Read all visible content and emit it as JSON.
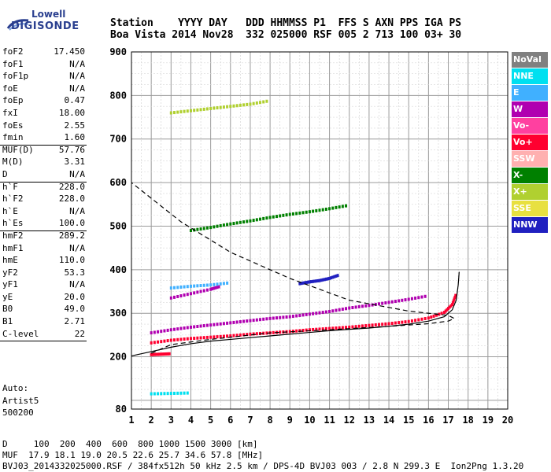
{
  "logo": {
    "line1": "Lowell",
    "line2": "DIGISONDE"
  },
  "header": {
    "labels": "Station    YYYY DAY   DDD HHMMSS P1  FFS S AXN PPS IGA PS",
    "values": "Boa Vista 2014 Nov28  332 025000 RSF 005 2 713 100 03+ 30"
  },
  "params": [
    {
      "k": "foF2",
      "v": "17.450"
    },
    {
      "k": "foF1",
      "v": "N/A"
    },
    {
      "k": "foF1p",
      "v": "N/A"
    },
    {
      "k": "foE",
      "v": "N/A"
    },
    {
      "k": "foEp",
      "v": "0.47"
    },
    {
      "k": "fxI",
      "v": "18.00"
    },
    {
      "k": "foEs",
      "v": "2.55"
    },
    {
      "k": "fmin",
      "v": "1.60"
    },
    {
      "k": "MUF(D)",
      "v": "57.76"
    },
    {
      "k": "M(D)",
      "v": "3.31"
    },
    {
      "k": "D",
      "v": "N/A"
    },
    {
      "k": "h`F",
      "v": "228.0"
    },
    {
      "k": "h`F2",
      "v": "228.0"
    },
    {
      "k": "h`E",
      "v": "N/A"
    },
    {
      "k": "h`Es",
      "v": "100.0"
    },
    {
      "k": "hmF2",
      "v": "289.2"
    },
    {
      "k": "hmF1",
      "v": "N/A"
    },
    {
      "k": "hmE",
      "v": "110.0"
    },
    {
      "k": "yF2",
      "v": "53.3"
    },
    {
      "k": "yF1",
      "v": "N/A"
    },
    {
      "k": "yE",
      "v": "20.0"
    },
    {
      "k": "B0",
      "v": "49.0"
    },
    {
      "k": "B1",
      "v": "2.71"
    },
    {
      "k": "C-level",
      "v": "22"
    }
  ],
  "auto": {
    "l1": "Auto:",
    "l2": "Artist5",
    "l3": "500200"
  },
  "legend": [
    {
      "label": "NoVal",
      "color": "#808080"
    },
    {
      "label": "NNE",
      "color": "#00e0f0"
    },
    {
      "label": "E",
      "color": "#40b0ff"
    },
    {
      "label": "W",
      "color": "#b000b0"
    },
    {
      "label": "Vo-",
      "color": "#ff40a0"
    },
    {
      "label": "Vo+",
      "color": "#ff0030"
    },
    {
      "label": "SSW",
      "color": "#ffb0b0"
    },
    {
      "label": "X-",
      "color": "#008000"
    },
    {
      "label": "X+",
      "color": "#b0d030"
    },
    {
      "label": "SSE",
      "color": "#e8e040"
    },
    {
      "label": "NNW",
      "color": "#2020c0"
    }
  ],
  "footer": {
    "line1": "D     100  200  400  600  800 1000 1500 3000 [km]",
    "line2": "MUF  17.9 18.1 19.0 20.5 22.6 25.7 34.6 57.8 [MHz]",
    "line3": "BVJ03_2014332025000.RSF / 384fx512h 50 kHz 2.5 km / DPS-4D BVJ03 003 / 2.8 N 299.3 E  Ion2Png 1.3.20"
  },
  "chart_data": {
    "type": "scatter",
    "title": "",
    "xlabel": "",
    "ylabel": "",
    "xlim": [
      1,
      20
    ],
    "ylim": [
      80,
      900
    ],
    "xticks": [
      1,
      2,
      3,
      4,
      5,
      6,
      7,
      8,
      9,
      10,
      11,
      12,
      13,
      14,
      15,
      16,
      17,
      18,
      19,
      20
    ],
    "yticks": [
      80,
      200,
      300,
      400,
      500,
      600,
      700,
      800,
      900
    ],
    "grid": true,
    "legend_position": "right",
    "virtual_height_profile": [
      [
        1.0,
        202
      ],
      [
        2.0,
        212
      ],
      [
        3.0,
        222
      ],
      [
        4.0,
        230
      ],
      [
        5.0,
        236
      ],
      [
        6.0,
        240
      ],
      [
        7.0,
        244
      ],
      [
        8.0,
        248
      ],
      [
        9.0,
        252
      ],
      [
        10.0,
        256
      ],
      [
        11.0,
        260
      ],
      [
        12.0,
        263
      ],
      [
        13.0,
        266
      ],
      [
        14.0,
        270
      ],
      [
        15.0,
        275
      ],
      [
        16.0,
        282
      ],
      [
        16.8,
        292
      ],
      [
        17.2,
        308
      ],
      [
        17.4,
        330
      ],
      [
        17.5,
        365
      ],
      [
        17.55,
        395
      ]
    ],
    "true_height_profile": [
      [
        2.0,
        208
      ],
      [
        3.0,
        228
      ],
      [
        5.0,
        240
      ],
      [
        8.0,
        255
      ],
      [
        11.0,
        262
      ],
      [
        14.0,
        270
      ],
      [
        16.0,
        276
      ],
      [
        17.0,
        282
      ],
      [
        17.3,
        288
      ],
      [
        17.0,
        295
      ],
      [
        15.0,
        305
      ],
      [
        12.0,
        330
      ],
      [
        9.0,
        380
      ],
      [
        6.0,
        440
      ],
      [
        3.5,
        510
      ],
      [
        1.0,
        600
      ]
    ],
    "traces": [
      {
        "series": "Vo+",
        "points": [
          [
            2.0,
            232
          ],
          [
            3.0,
            238
          ],
          [
            4.0,
            242
          ],
          [
            5.0,
            245
          ],
          [
            6.0,
            248
          ],
          [
            7.0,
            252
          ],
          [
            8.0,
            255
          ],
          [
            9.0,
            258
          ],
          [
            10.0,
            262
          ],
          [
            11.0,
            265
          ],
          [
            12.0,
            268
          ],
          [
            13.0,
            272
          ],
          [
            14.0,
            276
          ],
          [
            15.0,
            281
          ],
          [
            16.0,
            289
          ],
          [
            16.8,
            302
          ],
          [
            17.2,
            320
          ],
          [
            17.4,
            345
          ]
        ]
      },
      {
        "series": "W",
        "points": [
          [
            2.0,
            255
          ],
          [
            3.0,
            262
          ],
          [
            4.0,
            268
          ],
          [
            5.0,
            273
          ],
          [
            6.0,
            278
          ],
          [
            7.0,
            283
          ],
          [
            8.0,
            288
          ],
          [
            9.0,
            292
          ],
          [
            10.0,
            298
          ],
          [
            11.0,
            304
          ],
          [
            12.0,
            312
          ],
          [
            13.0,
            318
          ],
          [
            14.0,
            325
          ],
          [
            15.0,
            332
          ],
          [
            16.0,
            340
          ]
        ]
      },
      {
        "series": "W",
        "points": [
          [
            3.0,
            335
          ],
          [
            4.0,
            345
          ],
          [
            5.0,
            355
          ],
          [
            5.5,
            362
          ]
        ]
      },
      {
        "series": "X-",
        "points": [
          [
            4.0,
            490
          ],
          [
            5.0,
            497
          ],
          [
            6.0,
            505
          ],
          [
            7.0,
            512
          ],
          [
            8.0,
            520
          ],
          [
            9.0,
            527
          ],
          [
            10.0,
            533
          ],
          [
            11.0,
            540
          ],
          [
            12.0,
            548
          ]
        ]
      },
      {
        "series": "NNW",
        "points": [
          [
            9.5,
            368
          ],
          [
            10.0,
            372
          ],
          [
            10.5,
            375
          ],
          [
            11.0,
            380
          ],
          [
            11.5,
            388
          ]
        ]
      },
      {
        "series": "E",
        "points": [
          [
            3.0,
            358
          ],
          [
            4.0,
            362
          ],
          [
            5.0,
            365
          ],
          [
            6.0,
            370
          ]
        ]
      },
      {
        "series": "X+",
        "points": [
          [
            3.0,
            760
          ],
          [
            4.0,
            765
          ],
          [
            5.0,
            770
          ],
          [
            6.0,
            775
          ],
          [
            7.0,
            780
          ],
          [
            8.0,
            788
          ]
        ]
      },
      {
        "series": "Vo+",
        "points": [
          [
            2.0,
            205
          ],
          [
            2.5,
            206
          ],
          [
            3.0,
            207
          ]
        ]
      },
      {
        "series": "NNE",
        "points": [
          [
            2.0,
            115
          ],
          [
            3.0,
            116
          ],
          [
            4.0,
            117
          ]
        ]
      }
    ]
  }
}
